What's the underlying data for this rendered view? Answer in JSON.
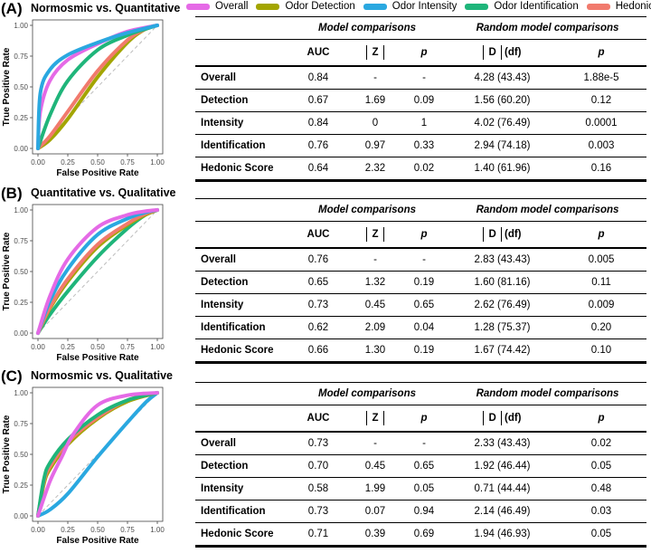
{
  "legend": [
    {
      "name": "Overall",
      "color": "#e56ae6"
    },
    {
      "name": "Odor Detection",
      "color": "#a3a500"
    },
    {
      "name": "Odor Intensity",
      "color": "#2aa8e0"
    },
    {
      "name": "Odor Identification",
      "color": "#1fb57a"
    },
    {
      "name": "Hedonic Score",
      "color": "#f17a6d"
    }
  ],
  "panels": [
    {
      "label": "(A)",
      "plot_title": "Normosmic vs. Quantitative",
      "table": {
        "group_model": "Model comparisons",
        "group_random": "Random model comparisons",
        "headers": {
          "auc": "AUC",
          "z": "Z",
          "p": "p",
          "d": "D",
          "df": "(df)",
          "p2": "p"
        },
        "rows": [
          {
            "name": "Overall",
            "auc": "0.84",
            "z": "-",
            "p": "-",
            "d": "4.28 (43.43)",
            "p2": "1.88e-5"
          },
          {
            "name": "Detection",
            "auc": "0.67",
            "z": "1.69",
            "p": "0.09",
            "d": "1.56 (60.20)",
            "p2": "0.12"
          },
          {
            "name": "Intensity",
            "auc": "0.84",
            "z": "0",
            "p": "1",
            "d": "4.02 (76.49)",
            "p2": "0.0001"
          },
          {
            "name": "Identification",
            "auc": "0.76",
            "z": "0.97",
            "p": "0.33",
            "d": "2.94 (74.18)",
            "p2": "0.003"
          },
          {
            "name": "Hedonic Score",
            "auc": "0.64",
            "z": "2.32",
            "p": "0.02",
            "d": "1.40 (61.96)",
            "p2": "0.16"
          }
        ]
      }
    },
    {
      "label": "(B)",
      "plot_title": "Quantitative vs. Qualitative",
      "table": {
        "group_model": "Model comparisons",
        "group_random": "Random model comparisons",
        "headers": {
          "auc": "AUC",
          "z": "Z",
          "p": "p",
          "d": "D",
          "df": "(df)",
          "p2": "p"
        },
        "rows": [
          {
            "name": "Overall",
            "auc": "0.76",
            "z": "-",
            "p": "-",
            "d": "2.83 (43.43)",
            "p2": "0.005"
          },
          {
            "name": "Detection",
            "auc": "0.65",
            "z": "1.32",
            "p": "0.19",
            "d": "1.60 (81.16)",
            "p2": "0.11"
          },
          {
            "name": "Intensity",
            "auc": "0.73",
            "z": "0.45",
            "p": "0.65",
            "d": "2.62 (76.49)",
            "p2": "0.009"
          },
          {
            "name": "Identification",
            "auc": "0.62",
            "z": "2.09",
            "p": "0.04",
            "d": "1.28 (75.37)",
            "p2": "0.20"
          },
          {
            "name": "Hedonic Score",
            "auc": "0.66",
            "z": "1.30",
            "p": "0.19",
            "d": "1.67 (74.42)",
            "p2": "0.10"
          }
        ]
      }
    },
    {
      "label": "(C)",
      "plot_title": "Normosmic vs. Qualitative",
      "table": {
        "group_model": "Model comparisons",
        "group_random": "Random model comparisons",
        "headers": {
          "auc": "AUC",
          "z": "Z",
          "p": "p",
          "d": "D",
          "df": "(df)",
          "p2": "p"
        },
        "rows": [
          {
            "name": "Overall",
            "auc": "0.73",
            "z": "-",
            "p": "-",
            "d": "2.33 (43.43)",
            "p2": "0.02"
          },
          {
            "name": "Detection",
            "auc": "0.70",
            "z": "0.45",
            "p": "0.65",
            "d": "1.92 (46.44)",
            "p2": "0.05"
          },
          {
            "name": "Intensity",
            "auc": "0.58",
            "z": "1.99",
            "p": "0.05",
            "d": "0.71 (44.44)",
            "p2": "0.48"
          },
          {
            "name": "Identification",
            "auc": "0.73",
            "z": "0.07",
            "p": "0.94",
            "d": "2.14 (46.49)",
            "p2": "0.03"
          },
          {
            "name": "Hedonic Score",
            "auc": "0.71",
            "z": "0.39",
            "p": "0.69",
            "d": "1.94 (46.93)",
            "p2": "0.05"
          }
        ]
      }
    }
  ],
  "chart_data": [
    {
      "type": "line",
      "title": "Normosmic vs. Quantitative",
      "xlabel": "False Positive Rate",
      "ylabel": "True Positive Rate",
      "xlim": [
        0,
        1
      ],
      "ylim": [
        0,
        1
      ],
      "ticks": [
        "0.00",
        "0.25",
        "0.50",
        "0.75",
        "1.00"
      ],
      "diagonal": true,
      "series": [
        {
          "name": "Odor Detection",
          "color": "#a3a500",
          "x": [
            0,
            0.1,
            0.25,
            0.5,
            0.75,
            0.9,
            1
          ],
          "y": [
            0,
            0.07,
            0.24,
            0.58,
            0.86,
            0.97,
            1
          ]
        },
        {
          "name": "Hedonic Score",
          "color": "#f17a6d",
          "x": [
            0,
            0.1,
            0.25,
            0.5,
            0.75,
            0.9,
            1
          ],
          "y": [
            0,
            0.1,
            0.3,
            0.63,
            0.88,
            0.97,
            1
          ]
        },
        {
          "name": "Odor Identification",
          "color": "#1fb57a",
          "x": [
            0,
            0.1,
            0.25,
            0.5,
            0.75,
            0.9,
            1
          ],
          "y": [
            0,
            0.27,
            0.55,
            0.8,
            0.92,
            0.97,
            1
          ]
        },
        {
          "name": "Overall",
          "color": "#e56ae6",
          "x": [
            0,
            0.02,
            0.1,
            0.25,
            0.5,
            0.75,
            1
          ],
          "y": [
            0,
            0.3,
            0.55,
            0.72,
            0.85,
            0.95,
            1
          ]
        },
        {
          "name": "Odor Intensity",
          "color": "#2aa8e0",
          "x": [
            0,
            0.02,
            0.1,
            0.25,
            0.5,
            0.75,
            1
          ],
          "y": [
            0,
            0.45,
            0.64,
            0.76,
            0.86,
            0.94,
            1
          ]
        }
      ]
    },
    {
      "type": "line",
      "title": "Quantitative vs. Qualitative",
      "xlabel": "False Positive Rate",
      "ylabel": "True Positive Rate",
      "xlim": [
        0,
        1
      ],
      "ylim": [
        0,
        1
      ],
      "ticks": [
        "0.00",
        "0.25",
        "0.50",
        "0.75",
        "1.00"
      ],
      "diagonal": true,
      "series": [
        {
          "name": "Odor Identification",
          "color": "#1fb57a",
          "x": [
            0,
            0.1,
            0.25,
            0.5,
            0.75,
            0.9,
            1
          ],
          "y": [
            0,
            0.15,
            0.34,
            0.62,
            0.85,
            0.96,
            1
          ]
        },
        {
          "name": "Odor Detection",
          "color": "#a3a500",
          "x": [
            0,
            0.1,
            0.25,
            0.5,
            0.75,
            0.9,
            1
          ],
          "y": [
            0,
            0.2,
            0.42,
            0.7,
            0.88,
            0.96,
            1
          ]
        },
        {
          "name": "Hedonic Score",
          "color": "#f17a6d",
          "x": [
            0,
            0.1,
            0.25,
            0.5,
            0.75,
            0.9,
            1
          ],
          "y": [
            0,
            0.21,
            0.44,
            0.72,
            0.89,
            0.97,
            1
          ]
        },
        {
          "name": "Odor Intensity",
          "color": "#2aa8e0",
          "x": [
            0,
            0.1,
            0.25,
            0.5,
            0.75,
            0.9,
            1
          ],
          "y": [
            0,
            0.26,
            0.52,
            0.8,
            0.93,
            0.98,
            1
          ]
        },
        {
          "name": "Overall",
          "color": "#e56ae6",
          "x": [
            0,
            0.1,
            0.25,
            0.5,
            0.75,
            0.9,
            1
          ],
          "y": [
            0,
            0.3,
            0.6,
            0.86,
            0.96,
            0.99,
            1
          ]
        }
      ]
    },
    {
      "type": "line",
      "title": "Normosmic vs. Qualitative",
      "xlabel": "False Positive Rate",
      "ylabel": "True Positive Rate",
      "xlim": [
        0,
        1
      ],
      "ylim": [
        0,
        1
      ],
      "ticks": [
        "0.00",
        "0.25",
        "0.50",
        "0.75",
        "1.00"
      ],
      "diagonal": true,
      "series": [
        {
          "name": "Odor Intensity",
          "color": "#2aa8e0",
          "x": [
            0,
            0.1,
            0.25,
            0.5,
            0.75,
            0.9,
            1
          ],
          "y": [
            0,
            0.05,
            0.18,
            0.48,
            0.76,
            0.92,
            1
          ]
        },
        {
          "name": "Odor Detection",
          "color": "#a3a500",
          "x": [
            0,
            0.05,
            0.1,
            0.25,
            0.5,
            0.75,
            1
          ],
          "y": [
            0,
            0.26,
            0.38,
            0.58,
            0.79,
            0.93,
            1
          ]
        },
        {
          "name": "Hedonic Score",
          "color": "#f17a6d",
          "x": [
            0,
            0.05,
            0.1,
            0.25,
            0.5,
            0.75,
            1
          ],
          "y": [
            0,
            0.28,
            0.4,
            0.6,
            0.8,
            0.94,
            1
          ]
        },
        {
          "name": "Odor Identification",
          "color": "#1fb57a",
          "x": [
            0,
            0.05,
            0.1,
            0.25,
            0.5,
            0.75,
            1
          ],
          "y": [
            0,
            0.3,
            0.43,
            0.62,
            0.82,
            0.94,
            1
          ]
        },
        {
          "name": "Overall",
          "color": "#e56ae6",
          "x": [
            0,
            0.1,
            0.2,
            0.3,
            0.5,
            0.75,
            1
          ],
          "y": [
            0,
            0.28,
            0.48,
            0.67,
            0.9,
            0.98,
            1
          ]
        }
      ]
    }
  ]
}
